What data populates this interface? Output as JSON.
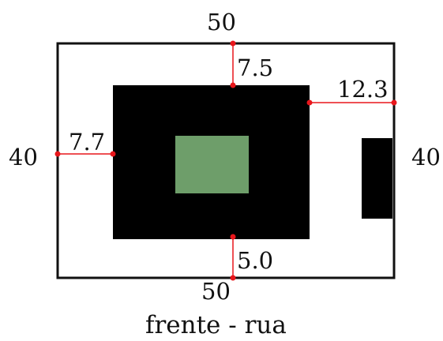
{
  "colors": {
    "outline": "#111111",
    "building": "#000000",
    "pool": "#6e9e6a",
    "measure": "#e8161b",
    "background": "#ffffff"
  },
  "lot": {
    "top_width": "50",
    "bottom_width": "50",
    "left_depth": "40",
    "right_depth": "40"
  },
  "setbacks": {
    "top": "7.5",
    "right": "12.3",
    "left": "7.7",
    "bottom": "5.0"
  },
  "caption": "frente - rua"
}
